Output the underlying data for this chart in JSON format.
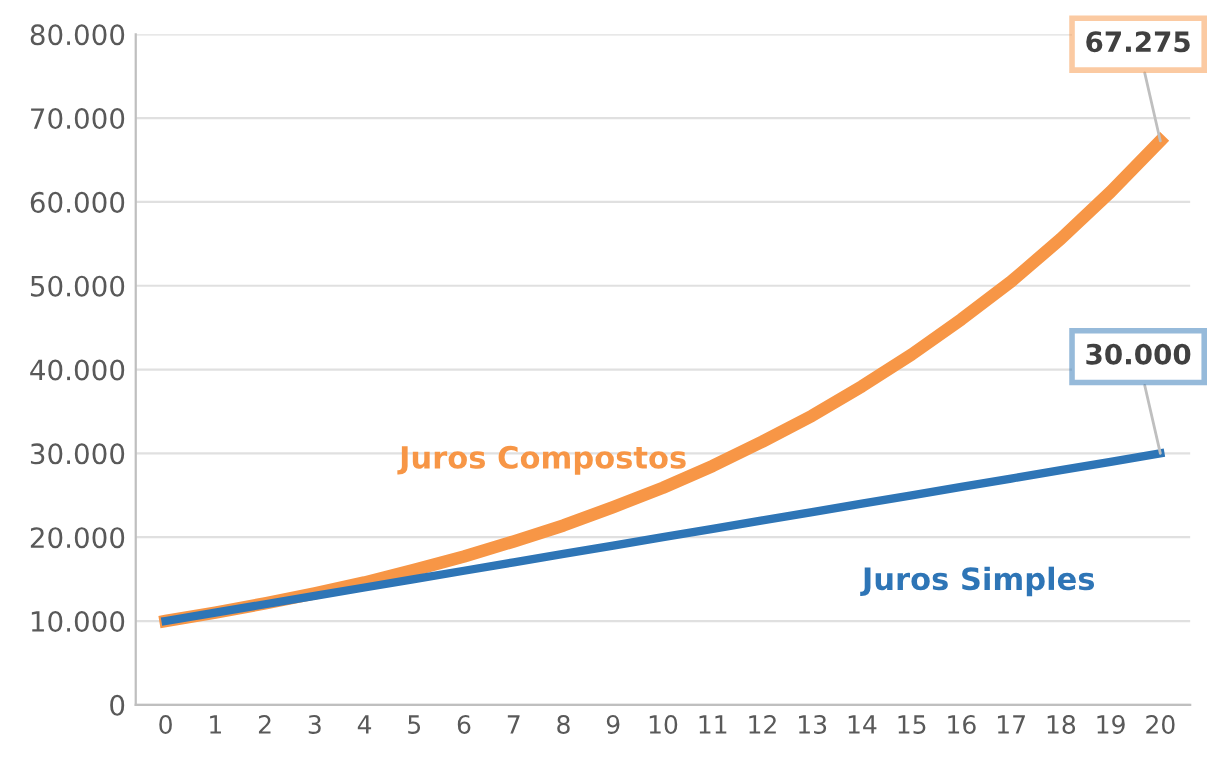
{
  "chart_data": {
    "type": "line",
    "categories": [
      "0",
      "1",
      "2",
      "3",
      "4",
      "5",
      "6",
      "7",
      "8",
      "9",
      "10",
      "11",
      "12",
      "13",
      "14",
      "15",
      "16",
      "17",
      "18",
      "19",
      "20"
    ],
    "series": [
      {
        "name": "Juros Compostos",
        "color": "#f79646",
        "values": [
          10000,
          11000,
          12100,
          13300,
          14600,
          16100,
          17700,
          19500,
          21400,
          23600,
          25900,
          28500,
          31400,
          34500,
          38000,
          41800,
          46000,
          50500,
          55600,
          61200,
          67275
        ],
        "value_labels": [
          null,
          null,
          null,
          null,
          null,
          null,
          null,
          null,
          null,
          null,
          null,
          null,
          null,
          null,
          null,
          null,
          null,
          null,
          null,
          null,
          "67.275"
        ]
      },
      {
        "name": "Juros Simples",
        "color": "#2e75b6",
        "values": [
          10000,
          11000,
          12000,
          13000,
          14000,
          15000,
          16000,
          17000,
          18000,
          19000,
          20000,
          21000,
          22000,
          23000,
          24000,
          25000,
          26000,
          27000,
          28000,
          29000,
          30000
        ],
        "value_labels": [
          null,
          null,
          null,
          null,
          null,
          null,
          null,
          null,
          null,
          null,
          null,
          null,
          null,
          null,
          null,
          null,
          null,
          null,
          null,
          null,
          "30.000"
        ]
      }
    ],
    "ylim": [
      0,
      80000
    ],
    "yticks": [
      {
        "value": 0,
        "label": "0"
      },
      {
        "value": 10000,
        "label": "10.000"
      },
      {
        "value": 20000,
        "label": "20.000"
      },
      {
        "value": 30000,
        "label": "30.000"
      },
      {
        "value": 40000,
        "label": "40.000"
      },
      {
        "value": 50000,
        "label": "50.000"
      },
      {
        "value": 60000,
        "label": "60.000"
      },
      {
        "value": 70000,
        "label": "70.000"
      },
      {
        "value": 80000,
        "label": "80.000"
      }
    ],
    "grid": "y",
    "legend": false,
    "marker": "none",
    "line_style": "solid"
  }
}
